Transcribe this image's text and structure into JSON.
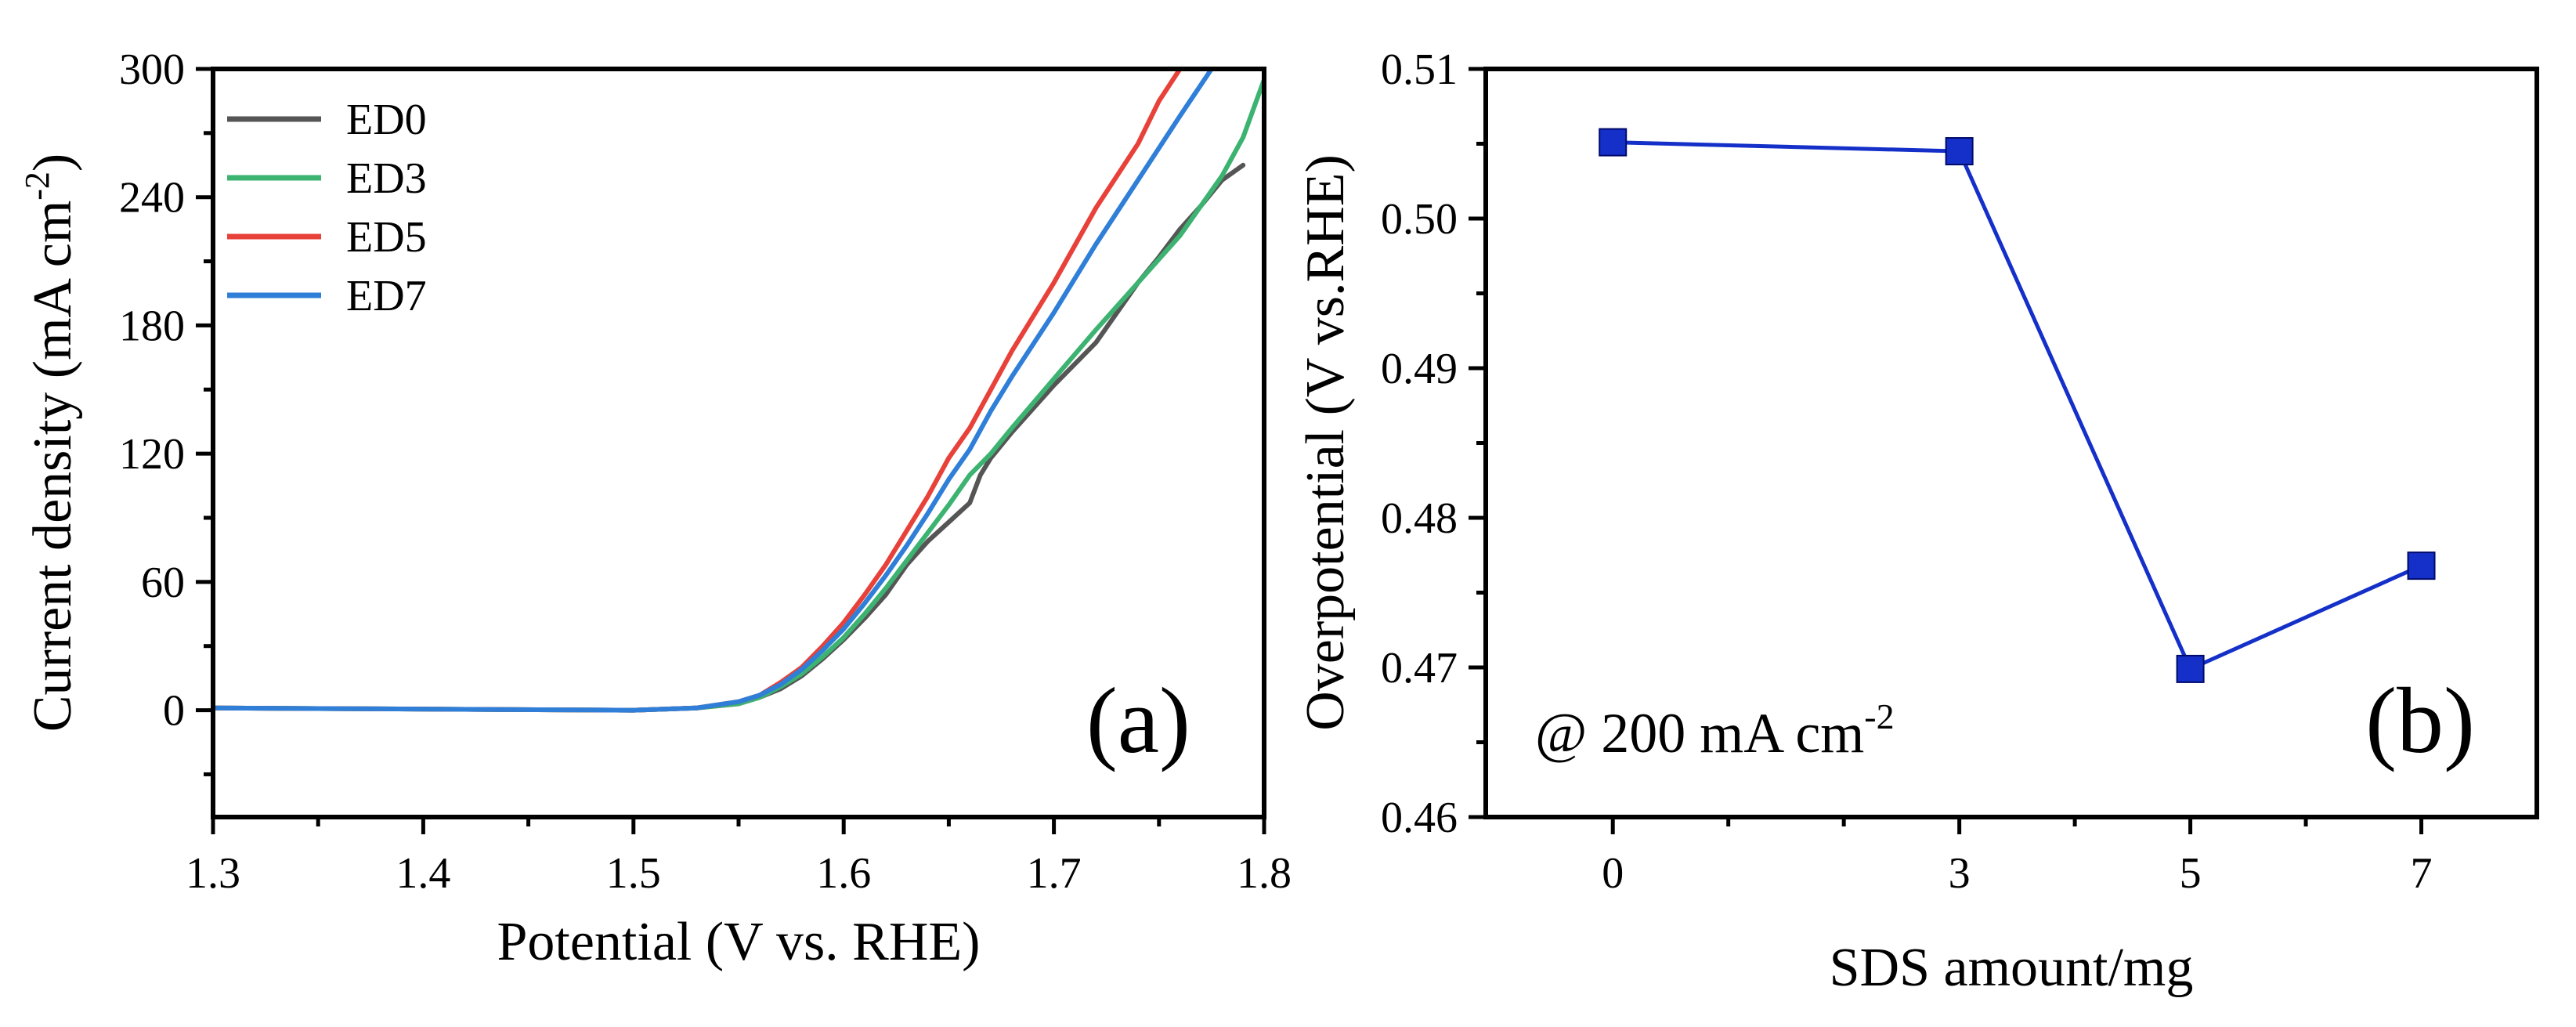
{
  "chart_data": [
    {
      "type": "line",
      "panel_label": "(a)",
      "xlabel": "Potential (V vs. RHE)",
      "ylabel": "Current density (mA cm",
      "ylabel_sup": "-2",
      "ylabel_end": ")",
      "xlim": [
        1.3,
        1.8
      ],
      "ylim": [
        -50,
        300
      ],
      "xticks": [
        "1.3",
        "1.4",
        "1.5",
        "1.6",
        "1.7",
        "1.8"
      ],
      "xtick_values": [
        1.3,
        1.4,
        1.5,
        1.6,
        1.7,
        1.8
      ],
      "yticks": [
        "0",
        "60",
        "120",
        "180",
        "240",
        "300"
      ],
      "ytick_values": [
        0,
        60,
        120,
        180,
        240,
        300
      ],
      "legend_position": "top-left",
      "series": [
        {
          "name": "ED0",
          "color": "#555555",
          "x": [
            1.3,
            1.5,
            1.53,
            1.55,
            1.56,
            1.57,
            1.58,
            1.59,
            1.6,
            1.61,
            1.62,
            1.63,
            1.64,
            1.65,
            1.66,
            1.665,
            1.67,
            1.68,
            1.7,
            1.72,
            1.74,
            1.75,
            1.76,
            1.77,
            1.78,
            1.79
          ],
          "y": [
            1,
            0,
            1,
            3,
            6,
            10,
            16,
            24,
            33,
            43,
            54,
            68,
            79,
            88,
            97,
            110,
            118,
            130,
            152,
            172,
            200,
            212,
            225,
            236,
            248,
            255
          ]
        },
        {
          "name": "ED3",
          "color": "#3cb371",
          "x": [
            1.3,
            1.5,
            1.53,
            1.55,
            1.56,
            1.57,
            1.58,
            1.59,
            1.6,
            1.61,
            1.62,
            1.63,
            1.64,
            1.65,
            1.66,
            1.67,
            1.68,
            1.7,
            1.72,
            1.74,
            1.76,
            1.78,
            1.79,
            1.8
          ],
          "y": [
            1,
            0,
            1,
            3,
            6,
            11,
            17,
            25,
            34,
            45,
            57,
            70,
            83,
            96,
            110,
            120,
            132,
            155,
            178,
            200,
            222,
            250,
            268,
            295
          ]
        },
        {
          "name": "ED5",
          "color": "#e8413a",
          "x": [
            1.3,
            1.5,
            1.53,
            1.55,
            1.56,
            1.57,
            1.58,
            1.59,
            1.6,
            1.61,
            1.62,
            1.63,
            1.64,
            1.65,
            1.66,
            1.67,
            1.68,
            1.7,
            1.72,
            1.74,
            1.75,
            1.76
          ],
          "y": [
            1,
            0,
            1,
            4,
            7,
            13,
            20,
            30,
            41,
            54,
            68,
            84,
            100,
            118,
            132,
            150,
            168,
            200,
            235,
            265,
            285,
            300
          ]
        },
        {
          "name": "ED7",
          "color": "#2f7fd8",
          "x": [
            1.3,
            1.5,
            1.53,
            1.55,
            1.56,
            1.57,
            1.58,
            1.59,
            1.6,
            1.61,
            1.62,
            1.63,
            1.64,
            1.65,
            1.66,
            1.67,
            1.68,
            1.7,
            1.72,
            1.74,
            1.76,
            1.775
          ],
          "y": [
            1,
            0,
            1,
            4,
            7,
            12,
            19,
            28,
            38,
            50,
            63,
            77,
            92,
            108,
            122,
            140,
            156,
            186,
            218,
            248,
            278,
            300
          ]
        }
      ]
    },
    {
      "type": "line",
      "panel_label": "(b)",
      "xlabel": "SDS amount/mg",
      "ylabel": "Overpotential (V vs.RHE)",
      "annotation": "@ 200 mA cm",
      "annotation_sup": "-2",
      "xlim": [
        -1.1,
        8.0
      ],
      "ylim": [
        0.46,
        0.51
      ],
      "xticks": [
        "0",
        "3",
        "5",
        "7"
      ],
      "xtick_values": [
        0,
        3,
        5,
        7
      ],
      "yticks": [
        "0.46",
        "0.47",
        "0.48",
        "0.49",
        "0.50",
        "0.51"
      ],
      "ytick_values": [
        0.46,
        0.47,
        0.48,
        0.49,
        0.5,
        0.51
      ],
      "series": [
        {
          "name": "Overpotential",
          "color": "#1430c8",
          "x": [
            0,
            3,
            5,
            7
          ],
          "y": [
            0.5051,
            0.5045,
            0.4699,
            0.4768
          ]
        }
      ]
    }
  ]
}
